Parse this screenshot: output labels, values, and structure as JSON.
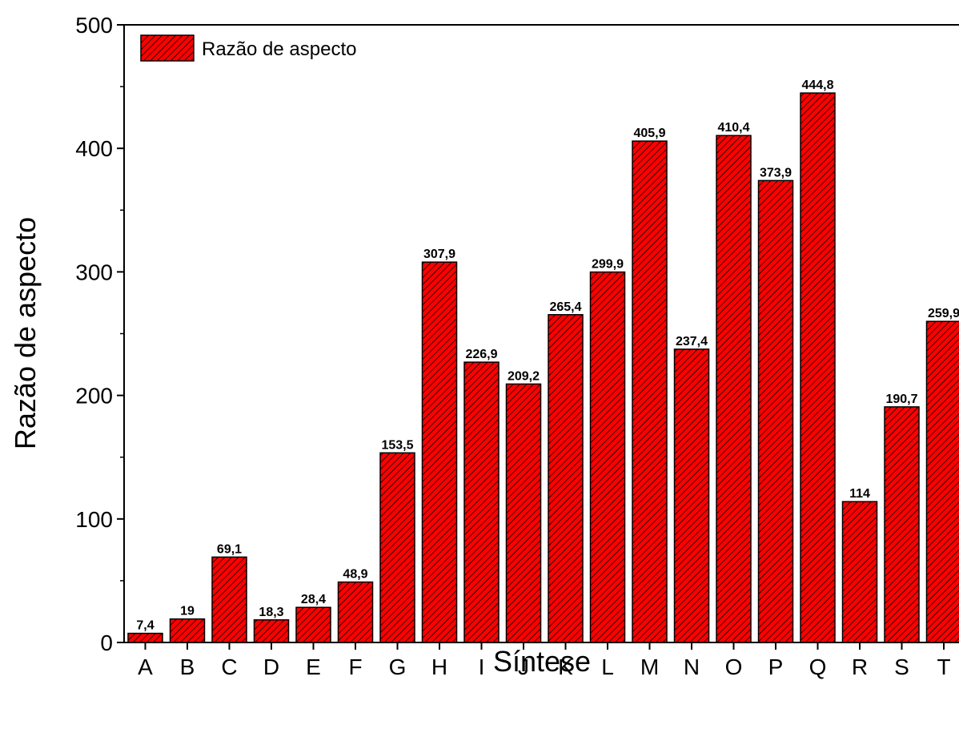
{
  "chart_data": {
    "type": "bar",
    "categories": [
      "A",
      "B",
      "C",
      "D",
      "E",
      "F",
      "G",
      "H",
      "I",
      "J",
      "K",
      "L",
      "M",
      "N",
      "O",
      "P",
      "Q",
      "R",
      "S",
      "T"
    ],
    "series": [
      {
        "name": "Razão de aspecto",
        "values": [
          7.4,
          19,
          69.1,
          18.3,
          28.4,
          48.9,
          153.5,
          307.9,
          226.9,
          209.2,
          265.4,
          299.9,
          405.9,
          237.4,
          410.4,
          373.9,
          444.8,
          114,
          190.7,
          259.9
        ]
      }
    ],
    "data_labels": [
      "7,4",
      "19",
      "69,1",
      "18,3",
      "28,4",
      "48,9",
      "153,5",
      "307,9",
      "226,9",
      "209,2",
      "265,4",
      "299,9",
      "405,9",
      "237,4",
      "410,4",
      "373,9",
      "444,8",
      "114",
      "190,7",
      "259,9"
    ],
    "xlabel": "Síntese",
    "ylabel": "Razão de aspecto",
    "ylim": [
      0,
      500
    ],
    "yticks": [
      0,
      100,
      200,
      300,
      400,
      500
    ],
    "legend_position": "top-left",
    "grid": false,
    "bar_color": "#ff0000",
    "bar_pattern": "diagonal-hatch",
    "hatch_color": "#000000"
  }
}
